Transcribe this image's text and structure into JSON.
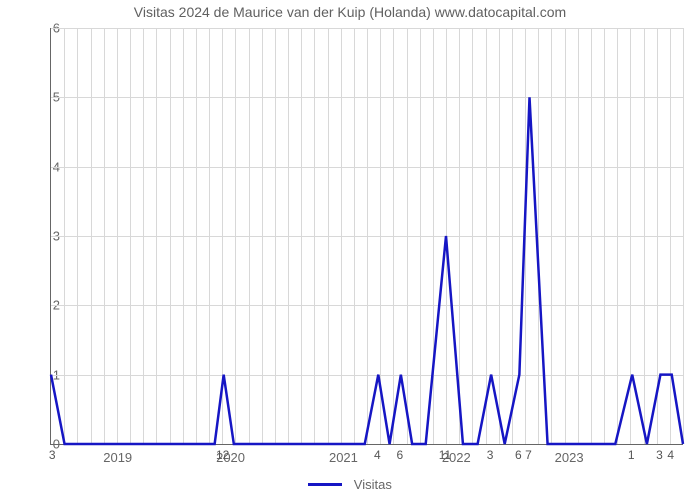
{
  "chart": {
    "type": "line",
    "title": "Visitas 2024 de Maurice van der Kuip (Holanda) www.datocapital.com",
    "title_fontsize": 14,
    "title_color": "#606060",
    "background_color": "#ffffff",
    "grid_color": "#d8d8d8",
    "axis_color": "#666666",
    "tick_font_color": "#666666",
    "tick_fontsize": 13,
    "ylim": [
      0,
      6
    ],
    "ytick_step": 1,
    "yticks": [
      0,
      1,
      2,
      3,
      4,
      5,
      6
    ],
    "x_start_year": 2018.4,
    "x_end_year": 2024.0,
    "x_year_ticks": [
      2019,
      2020,
      2021,
      2022,
      2023
    ],
    "x_minor_grid_count": 48,
    "x_count_labels": [
      {
        "label": "3",
        "year": 2018.42
      },
      {
        "label": "12",
        "year": 2019.93
      },
      {
        "label": "4",
        "year": 2021.3
      },
      {
        "label": "6",
        "year": 2021.5
      },
      {
        "label": "11",
        "year": 2021.9
      },
      {
        "label": "3",
        "year": 2022.3
      },
      {
        "label": "6",
        "year": 2022.55
      },
      {
        "label": "7",
        "year": 2022.64
      },
      {
        "label": "1",
        "year": 2023.55
      },
      {
        "label": "3",
        "year": 2023.8
      },
      {
        "label": "4",
        "year": 2023.9
      }
    ],
    "series": {
      "name": "Visitas",
      "color": "#1616c4",
      "line_width": 2.5,
      "points": [
        {
          "x": 2018.4,
          "y": 1
        },
        {
          "x": 2018.52,
          "y": 0
        },
        {
          "x": 2019.85,
          "y": 0
        },
        {
          "x": 2019.93,
          "y": 1
        },
        {
          "x": 2020.02,
          "y": 0
        },
        {
          "x": 2021.1,
          "y": 0
        },
        {
          "x": 2021.18,
          "y": 0
        },
        {
          "x": 2021.3,
          "y": 1
        },
        {
          "x": 2021.4,
          "y": 0
        },
        {
          "x": 2021.5,
          "y": 1
        },
        {
          "x": 2021.6,
          "y": 0
        },
        {
          "x": 2021.72,
          "y": 0
        },
        {
          "x": 2021.9,
          "y": 3
        },
        {
          "x": 2022.05,
          "y": 0
        },
        {
          "x": 2022.18,
          "y": 0
        },
        {
          "x": 2022.3,
          "y": 1
        },
        {
          "x": 2022.42,
          "y": 0
        },
        {
          "x": 2022.55,
          "y": 1
        },
        {
          "x": 2022.64,
          "y": 5
        },
        {
          "x": 2022.8,
          "y": 0
        },
        {
          "x": 2023.4,
          "y": 0
        },
        {
          "x": 2023.55,
          "y": 1
        },
        {
          "x": 2023.68,
          "y": 0
        },
        {
          "x": 2023.8,
          "y": 1
        },
        {
          "x": 2023.9,
          "y": 1
        },
        {
          "x": 2024.0,
          "y": 0
        }
      ]
    },
    "legend": {
      "label": "Visitas",
      "fontsize": 13,
      "color": "#666666"
    }
  }
}
